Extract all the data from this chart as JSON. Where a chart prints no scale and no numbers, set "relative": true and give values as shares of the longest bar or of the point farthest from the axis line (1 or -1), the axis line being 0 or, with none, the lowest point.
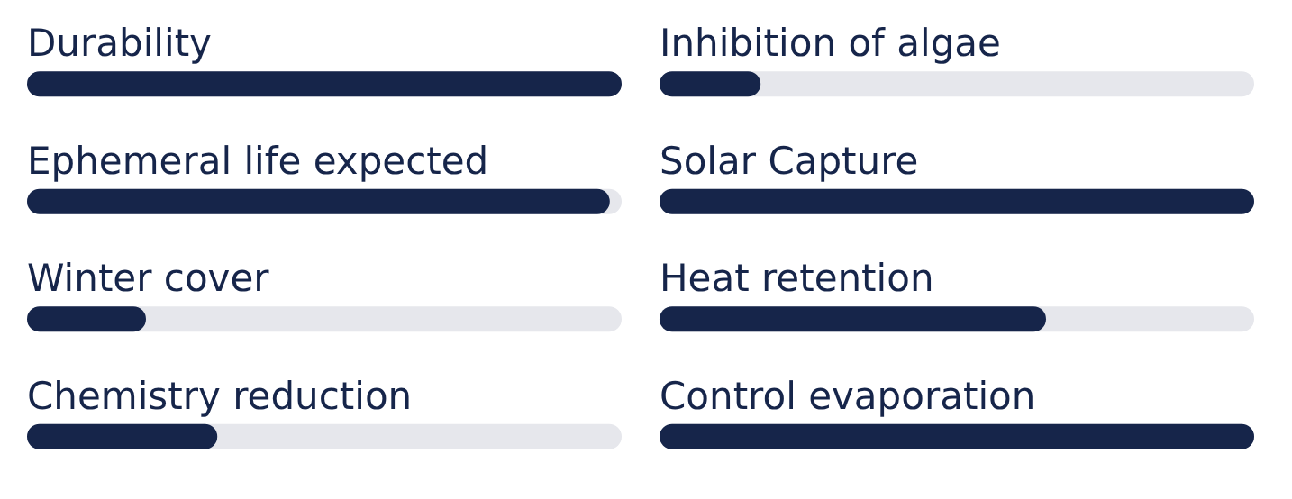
{
  "chart_data": [
    {
      "type": "bar",
      "orientation": "horizontal",
      "relative": true,
      "categories": [
        "Durability",
        "Ephemeral life expected",
        "Winter cover",
        "Chemistry reduction"
      ],
      "values": [
        1,
        0.98,
        0.2,
        0.32
      ],
      "color": "#16254a"
    },
    {
      "type": "bar",
      "orientation": "horizontal",
      "relative": true,
      "categories": [
        "Inhibition of algae",
        "Solar Capture",
        "Heat retention",
        "Control evaporation"
      ],
      "values": [
        0.17,
        1,
        0.65,
        1
      ],
      "color": "#16254a"
    }
  ]
}
